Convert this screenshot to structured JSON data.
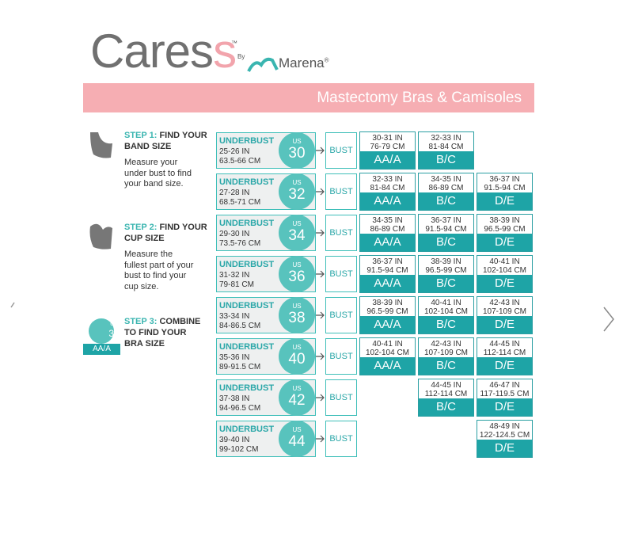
{
  "logo": {
    "brand": "Cares",
    "brand_end": "s",
    "tm": "™",
    "by": "By",
    "maker": "Marena",
    "reg": "®"
  },
  "banner": {
    "title": "Mastectomy Bras & Camisoles"
  },
  "steps": [
    {
      "label": "STEP 1:",
      "title": "FIND YOUR BAND SIZE",
      "text": "Measure your under bust to find your band size."
    },
    {
      "label": "STEP 2:",
      "title": "FIND YOUR CUP SIZE",
      "text": "Measure the fullest part of your bust  to find your cup size."
    },
    {
      "label": "STEP 3:",
      "title": "COMBINE TO FIND YOUR BRA SIZE",
      "example_us": "US",
      "example_band": "30",
      "example_cup": "AA/A"
    }
  ],
  "labels": {
    "underbust": "UNDERBUST",
    "us": "US",
    "bust": "BUST"
  },
  "table": {
    "rows": [
      {
        "band": "30",
        "in": "25-26 IN",
        "cm": "63.5-66 CM",
        "cups": [
          {
            "in": "30-31 IN",
            "cm": "76-79 CM",
            "size": "AA/A"
          },
          {
            "in": "32-33 IN",
            "cm": "81-84 CM",
            "size": "B/C"
          },
          null
        ]
      },
      {
        "band": "32",
        "in": "27-28 IN",
        "cm": "68.5-71 CM",
        "cups": [
          {
            "in": "32-33 IN",
            "cm": "81-84 CM",
            "size": "AA/A"
          },
          {
            "in": "34-35 IN",
            "cm": "86-89 CM",
            "size": "B/C"
          },
          {
            "in": "36-37 IN",
            "cm": "91.5-94 CM",
            "size": "D/E"
          }
        ]
      },
      {
        "band": "34",
        "in": "29-30 IN",
        "cm": "73.5-76 CM",
        "cups": [
          {
            "in": "34-35 IN",
            "cm": "86-89 CM",
            "size": "AA/A"
          },
          {
            "in": "36-37 IN",
            "cm": "91.5-94 CM",
            "size": "B/C"
          },
          {
            "in": "38-39 IN",
            "cm": "96.5-99 CM",
            "size": "D/E"
          }
        ]
      },
      {
        "band": "36",
        "in": "31-32 IN",
        "cm": "79-81 CM",
        "cups": [
          {
            "in": "36-37 IN",
            "cm": "91.5-94 CM",
            "size": "AA/A"
          },
          {
            "in": "38-39 IN",
            "cm": "96.5-99 CM",
            "size": "B/C"
          },
          {
            "in": "40-41 IN",
            "cm": "102-104 CM",
            "size": "D/E"
          }
        ]
      },
      {
        "band": "38",
        "in": "33-34 IN",
        "cm": "84-86.5 CM",
        "cups": [
          {
            "in": "38-39 IN",
            "cm": "96.5-99 CM",
            "size": "AA/A"
          },
          {
            "in": "40-41 IN",
            "cm": "102-104 CM",
            "size": "B/C"
          },
          {
            "in": "42-43 IN",
            "cm": "107-109 CM",
            "size": "D/E"
          }
        ]
      },
      {
        "band": "40",
        "in": "35-36 IN",
        "cm": "89-91.5 CM",
        "cups": [
          {
            "in": "40-41 IN",
            "cm": "102-104 CM",
            "size": "AA/A"
          },
          {
            "in": "42-43 IN",
            "cm": "107-109 CM",
            "size": "B/C"
          },
          {
            "in": "44-45 IN",
            "cm": "112-114 CM",
            "size": "D/E"
          }
        ]
      },
      {
        "band": "42",
        "in": "37-38 IN",
        "cm": "94-96.5 CM",
        "cups": [
          null,
          {
            "in": "44-45 IN",
            "cm": "112-114 CM",
            "size": "B/C"
          },
          {
            "in": "46-47 IN",
            "cm": "117-119.5 CM",
            "size": "D/E"
          }
        ]
      },
      {
        "band": "44",
        "in": "39-40 IN",
        "cm": "99-102 CM",
        "cups": [
          null,
          null,
          {
            "in": "48-49 IN",
            "cm": "122-124.5 CM",
            "size": "D/E"
          }
        ]
      }
    ]
  }
}
